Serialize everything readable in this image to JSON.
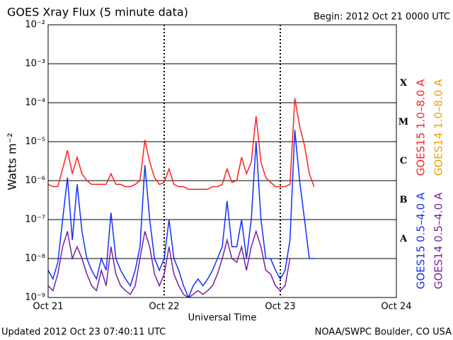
{
  "chart_data": {
    "type": "line",
    "title": "GOES Xray Flux (5 minute data)",
    "subtitle": "Begin:  2012 Oct 21 0000 UTC",
    "ylabel": "Watts m⁻²",
    "xlabel": "Universal Time",
    "footer_left": "Updated 2012 Oct 23 07:40:11 UTC",
    "footer_right": "NOAA/SWPC Boulder, CO USA",
    "flare_classes": [
      "X",
      "M",
      "C",
      "B",
      "A"
    ],
    "log_y": true,
    "grid": true,
    "xlim": [
      0,
      72
    ],
    "xticks": [
      {
        "value": 0,
        "label": "Oct 21"
      },
      {
        "value": 24,
        "label": "Oct 22"
      },
      {
        "value": 48,
        "label": "Oct 23"
      },
      {
        "value": 72,
        "label": "Oct 24"
      }
    ],
    "ylim": [
      1e-09,
      0.01
    ],
    "yticks": [
      {
        "value": 1e-09,
        "label": "10⁻⁹"
      },
      {
        "value": 1e-08,
        "label": "10⁻⁸"
      },
      {
        "value": 1e-07,
        "label": "10⁻⁷"
      },
      {
        "value": 1e-06,
        "label": "10⁻⁶"
      },
      {
        "value": 1e-05,
        "label": "10⁻⁵"
      },
      {
        "value": 0.0001,
        "label": "10⁻⁴"
      },
      {
        "value": 0.001,
        "label": "10⁻³"
      },
      {
        "value": 0.01,
        "label": "10⁻²"
      }
    ],
    "x": [
      0,
      1,
      2,
      3,
      4,
      5,
      6,
      7,
      8,
      9,
      10,
      11,
      12,
      13,
      14,
      15,
      16,
      17,
      18,
      19,
      20,
      21,
      22,
      23,
      24,
      25,
      26,
      27,
      28,
      29,
      30,
      31,
      32,
      33,
      34,
      35,
      36,
      37,
      38,
      39,
      40,
      41,
      42,
      43,
      44,
      45,
      46,
      47,
      48,
      49,
      50,
      51,
      52,
      53,
      54,
      55
    ],
    "series": [
      {
        "name": "GOES14 1.0–8.0 A",
        "color": "#f0a000",
        "values": [
          null,
          null,
          null,
          null,
          null,
          null,
          null,
          null,
          null,
          null,
          null,
          null,
          null,
          null,
          null,
          null,
          null,
          null,
          null,
          null,
          null,
          null,
          null,
          null,
          null,
          null,
          null,
          null,
          null,
          null,
          null,
          null,
          null,
          null,
          null,
          null,
          null,
          null,
          null,
          null,
          null,
          null,
          null,
          null,
          null,
          null,
          null,
          null,
          null,
          null,
          null,
          null,
          null,
          null,
          null,
          null
        ]
      },
      {
        "name": "GOES14 0.5–4.0 A",
        "color": "#7a1fa0",
        "values": [
          2e-09,
          1.5e-09,
          4e-09,
          2e-08,
          5e-08,
          1e-08,
          2e-08,
          1e-08,
          4e-09,
          2e-09,
          1.5e-09,
          5e-09,
          2e-09,
          2e-08,
          4e-09,
          2e-09,
          1.5e-09,
          1.2e-09,
          2e-09,
          1e-08,
          5e-08,
          2e-08,
          4e-09,
          2e-09,
          4e-09,
          2e-08,
          4e-09,
          2e-09,
          1.2e-09,
          1e-09,
          1.2e-09,
          1.5e-09,
          1.2e-09,
          1.5e-09,
          2e-09,
          4e-09,
          1e-08,
          3e-08,
          1e-08,
          8e-09,
          2e-08,
          5e-09,
          2e-08,
          5e-08,
          2e-08,
          5e-09,
          4e-09,
          2e-09,
          1.5e-09,
          2e-09,
          1e-08,
          null,
          null,
          null,
          null,
          null
        ]
      },
      {
        "name": "GOES15 1.0–8.0 A",
        "color": "#ff2020",
        "values": [
          8e-07,
          7e-07,
          7e-07,
          2e-06,
          6e-06,
          1.5e-06,
          4e-06,
          1.5e-06,
          1e-06,
          8e-07,
          8e-07,
          8e-07,
          8e-07,
          1.5e-06,
          8e-07,
          8e-07,
          7e-07,
          7e-07,
          8e-07,
          1e-06,
          1.1e-05,
          3e-06,
          1.2e-06,
          8e-07,
          9e-07,
          2e-06,
          8e-07,
          7e-07,
          7e-07,
          6e-07,
          6e-07,
          6e-07,
          6e-07,
          6e-07,
          7e-07,
          7e-07,
          8e-07,
          2e-06,
          9e-07,
          1e-06,
          4e-06,
          1.5e-06,
          3e-06,
          4.5e-05,
          3e-06,
          1.2e-06,
          9e-07,
          7e-07,
          7e-07,
          7e-07,
          8e-07,
          0.00013,
          2.5e-05,
          8e-06,
          1.5e-06,
          7e-07
        ]
      },
      {
        "name": "GOES15 0.5–4.0 A",
        "color": "#1030ff",
        "values": [
          5e-09,
          3e-09,
          8e-09,
          1e-07,
          1.2e-06,
          3e-08,
          8e-07,
          5e-08,
          1e-08,
          5e-09,
          3e-09,
          1e-08,
          5e-09,
          1.5e-07,
          1e-08,
          5e-09,
          3e-09,
          2e-09,
          5e-09,
          2e-08,
          2.5e-06,
          1e-07,
          1e-08,
          5e-09,
          1e-08,
          1e-07,
          1e-08,
          5e-09,
          2e-09,
          1e-09,
          2e-09,
          3e-09,
          2e-09,
          3e-09,
          5e-09,
          1e-08,
          2e-08,
          3e-07,
          2e-08,
          2e-08,
          1e-07,
          1e-08,
          1e-07,
          1e-05,
          1e-07,
          1e-08,
          1e-08,
          5e-09,
          3e-09,
          5e-09,
          3e-08,
          2e-05,
          1e-06,
          1e-07,
          1e-08,
          1e-08
        ]
      }
    ]
  }
}
